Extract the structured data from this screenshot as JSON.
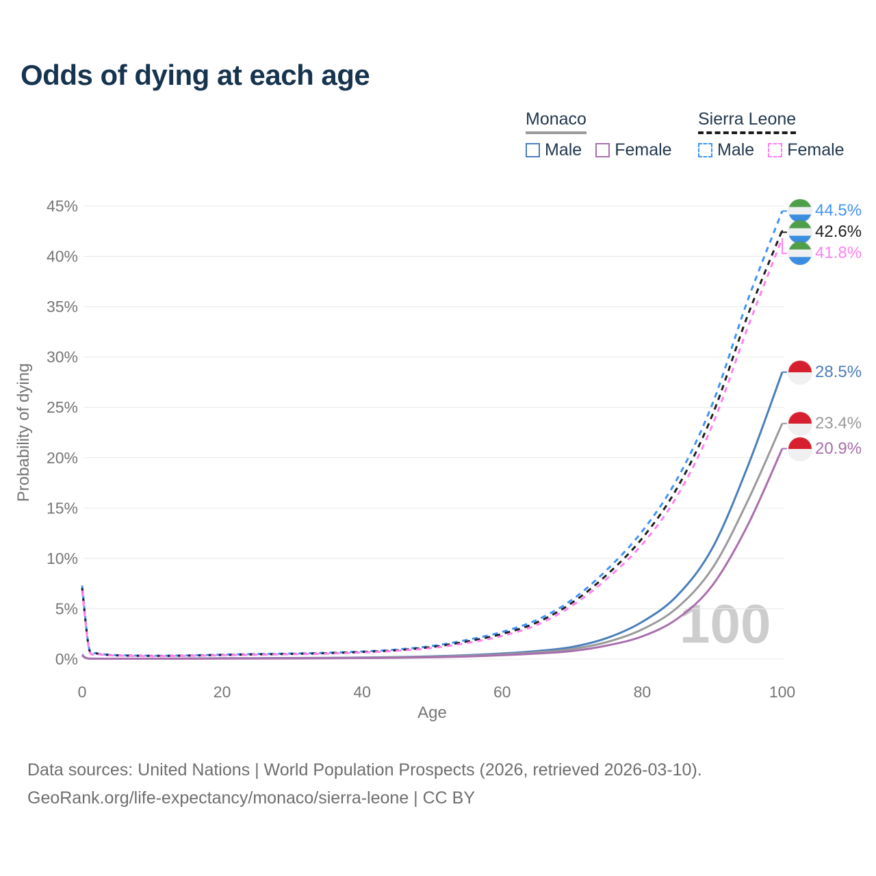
{
  "title": "Odds of dying at each age",
  "colors": {
    "title": "#17344f",
    "text": "#22374e",
    "axis": "#757575",
    "grid": "#e8e8e8",
    "watermark": "#cdcdcd",
    "background": "#ffffff"
  },
  "legend": {
    "groups": [
      {
        "key": "monaco",
        "name": "Monaco",
        "underline_color": "#9a9a9a",
        "underline_dashed": false,
        "items": [
          {
            "key": "male",
            "label": "Male",
            "color": "#4a7ebc",
            "dashed": false
          },
          {
            "key": "female",
            "label": "Female",
            "color": "#a96fad",
            "dashed": false
          }
        ]
      },
      {
        "key": "sierra-leone",
        "name": "Sierra Leone",
        "underline_color": "#1a1a1a",
        "underline_dashed": true,
        "items": [
          {
            "key": "male",
            "label": "Male",
            "color": "#3f93f6",
            "dashed": true
          },
          {
            "key": "female",
            "label": "Female",
            "color": "#ff80ef",
            "dashed": true
          }
        ]
      }
    ]
  },
  "flags": {
    "sierra_leone": {
      "stripes": [
        "#4f9e4a",
        "#eef0f2",
        "#3b8de0"
      ]
    },
    "monaco": {
      "stripes": [
        "#d7202f",
        "#f0f0f0"
      ]
    }
  },
  "chart_data": {
    "type": "line",
    "title": "Odds of dying at each age",
    "xlabel": "Age",
    "ylabel": "Probability of dying",
    "xlim": [
      0,
      100
    ],
    "ylim": [
      0,
      45
    ],
    "grid": "horizontal",
    "legend_position": "top-right",
    "watermark": "100",
    "x_ticks": {
      "values": [
        0,
        20,
        40,
        60,
        80,
        100
      ],
      "labels": [
        "0",
        "20",
        "40",
        "60",
        "80",
        "100"
      ]
    },
    "y_ticks": {
      "values": [
        0,
        5,
        10,
        15,
        20,
        25,
        30,
        35,
        40,
        45
      ],
      "labels": [
        "0%",
        "5%",
        "10%",
        "15%",
        "20%",
        "25%",
        "30%",
        "35%",
        "40%",
        "45%"
      ]
    },
    "series": [
      {
        "key": "sierra-leone-male",
        "name": "Sierra Leone — Male",
        "country": "Sierra Leone",
        "sex": "Male",
        "color": "#3f93f6",
        "dashed": true,
        "flag": "sierra_leone",
        "end_label": "44.5%",
        "end_value": 44.5,
        "points": [
          [
            0,
            7.3
          ],
          [
            1,
            1.05
          ],
          [
            2,
            0.6
          ],
          [
            3,
            0.48
          ],
          [
            4,
            0.42
          ],
          [
            5,
            0.38
          ],
          [
            10,
            0.33
          ],
          [
            15,
            0.36
          ],
          [
            20,
            0.44
          ],
          [
            25,
            0.5
          ],
          [
            30,
            0.55
          ],
          [
            35,
            0.62
          ],
          [
            40,
            0.75
          ],
          [
            45,
            0.95
          ],
          [
            50,
            1.3
          ],
          [
            55,
            1.9
          ],
          [
            60,
            2.7
          ],
          [
            65,
            3.9
          ],
          [
            70,
            5.9
          ],
          [
            75,
            8.9
          ],
          [
            80,
            12.7
          ],
          [
            85,
            17.9
          ],
          [
            90,
            25.3
          ],
          [
            95,
            35.5
          ],
          [
            100,
            44.5
          ]
        ]
      },
      {
        "key": "sierra-leone-total",
        "name": "Sierra Leone — Both sexes",
        "country": "Sierra Leone",
        "sex": "Both",
        "color": "#1f1f1f",
        "dashed": true,
        "flag": "sierra_leone",
        "end_label": "42.6%",
        "end_value": 42.6,
        "points": [
          [
            0,
            7.05
          ],
          [
            1,
            1.0
          ],
          [
            2,
            0.57
          ],
          [
            3,
            0.45
          ],
          [
            4,
            0.4
          ],
          [
            5,
            0.36
          ],
          [
            10,
            0.31
          ],
          [
            15,
            0.34
          ],
          [
            20,
            0.41
          ],
          [
            25,
            0.46
          ],
          [
            30,
            0.51
          ],
          [
            35,
            0.58
          ],
          [
            40,
            0.7
          ],
          [
            45,
            0.88
          ],
          [
            50,
            1.2
          ],
          [
            55,
            1.75
          ],
          [
            60,
            2.5
          ],
          [
            65,
            3.65
          ],
          [
            70,
            5.6
          ],
          [
            75,
            8.4
          ],
          [
            80,
            12.0
          ],
          [
            85,
            17.0
          ],
          [
            90,
            24.2
          ],
          [
            95,
            34.0
          ],
          [
            100,
            42.6
          ]
        ]
      },
      {
        "key": "sierra-leone-female",
        "name": "Sierra Leone — Female",
        "country": "Sierra Leone",
        "sex": "Female",
        "color": "#ff80ef",
        "dashed": true,
        "flag": "sierra_leone",
        "end_label": "41.8%",
        "end_value": 41.8,
        "points": [
          [
            0,
            6.8
          ],
          [
            1,
            0.95
          ],
          [
            2,
            0.54
          ],
          [
            3,
            0.43
          ],
          [
            4,
            0.38
          ],
          [
            5,
            0.34
          ],
          [
            10,
            0.29
          ],
          [
            15,
            0.32
          ],
          [
            20,
            0.38
          ],
          [
            25,
            0.43
          ],
          [
            30,
            0.48
          ],
          [
            35,
            0.54
          ],
          [
            40,
            0.65
          ],
          [
            45,
            0.82
          ],
          [
            50,
            1.1
          ],
          [
            55,
            1.6
          ],
          [
            60,
            2.3
          ],
          [
            65,
            3.4
          ],
          [
            70,
            5.3
          ],
          [
            75,
            8.0
          ],
          [
            80,
            11.4
          ],
          [
            85,
            16.2
          ],
          [
            90,
            23.2
          ],
          [
            95,
            32.8
          ],
          [
            100,
            41.8
          ]
        ]
      },
      {
        "key": "monaco-male",
        "name": "Monaco — Male",
        "country": "Monaco",
        "sex": "Male",
        "color": "#4a7ebc",
        "dashed": false,
        "flag": "monaco",
        "end_label": "28.5%",
        "end_value": 28.5,
        "points": [
          [
            0,
            0.45
          ],
          [
            1,
            0.05
          ],
          [
            5,
            0.03
          ],
          [
            10,
            0.03
          ],
          [
            15,
            0.05
          ],
          [
            20,
            0.08
          ],
          [
            25,
            0.09
          ],
          [
            30,
            0.1
          ],
          [
            35,
            0.12
          ],
          [
            40,
            0.15
          ],
          [
            45,
            0.2
          ],
          [
            50,
            0.27
          ],
          [
            55,
            0.38
          ],
          [
            60,
            0.55
          ],
          [
            65,
            0.8
          ],
          [
            70,
            1.2
          ],
          [
            75,
            2.1
          ],
          [
            80,
            3.7
          ],
          [
            85,
            6.3
          ],
          [
            90,
            11.0
          ],
          [
            95,
            19.0
          ],
          [
            100,
            28.5
          ]
        ]
      },
      {
        "key": "monaco-total",
        "name": "Monaco — Both sexes",
        "country": "Monaco",
        "sex": "Both",
        "color": "#9a9a9a",
        "dashed": false,
        "flag": "monaco",
        "end_label": "23.4%",
        "end_value": 23.4,
        "points": [
          [
            0,
            0.4
          ],
          [
            1,
            0.045
          ],
          [
            5,
            0.025
          ],
          [
            10,
            0.025
          ],
          [
            15,
            0.04
          ],
          [
            20,
            0.06
          ],
          [
            25,
            0.07
          ],
          [
            30,
            0.08
          ],
          [
            35,
            0.1
          ],
          [
            40,
            0.13
          ],
          [
            45,
            0.17
          ],
          [
            50,
            0.23
          ],
          [
            55,
            0.32
          ],
          [
            60,
            0.47
          ],
          [
            65,
            0.68
          ],
          [
            70,
            1.0
          ],
          [
            75,
            1.7
          ],
          [
            80,
            2.95
          ],
          [
            85,
            5.1
          ],
          [
            90,
            9.0
          ],
          [
            95,
            15.6
          ],
          [
            100,
            23.4
          ]
        ]
      },
      {
        "key": "monaco-female",
        "name": "Monaco — Female",
        "country": "Monaco",
        "sex": "Female",
        "color": "#a96fad",
        "dashed": false,
        "flag": "monaco",
        "end_label": "20.9%",
        "end_value": 20.9,
        "points": [
          [
            0,
            0.35
          ],
          [
            1,
            0.04
          ],
          [
            5,
            0.02
          ],
          [
            10,
            0.02
          ],
          [
            15,
            0.03
          ],
          [
            20,
            0.045
          ],
          [
            25,
            0.055
          ],
          [
            30,
            0.06
          ],
          [
            35,
            0.075
          ],
          [
            40,
            0.1
          ],
          [
            45,
            0.13
          ],
          [
            50,
            0.18
          ],
          [
            55,
            0.26
          ],
          [
            60,
            0.38
          ],
          [
            65,
            0.55
          ],
          [
            70,
            0.8
          ],
          [
            75,
            1.35
          ],
          [
            80,
            2.25
          ],
          [
            85,
            4.0
          ],
          [
            90,
            7.3
          ],
          [
            95,
            13.2
          ],
          [
            100,
            20.9
          ]
        ]
      }
    ]
  },
  "footer": {
    "line1": "Data sources: United Nations | World Population Prospects (2026, retrieved 2026-03-10).",
    "line2": "GeoRank.org/life-expectancy/monaco/sierra-leone | CC BY"
  }
}
